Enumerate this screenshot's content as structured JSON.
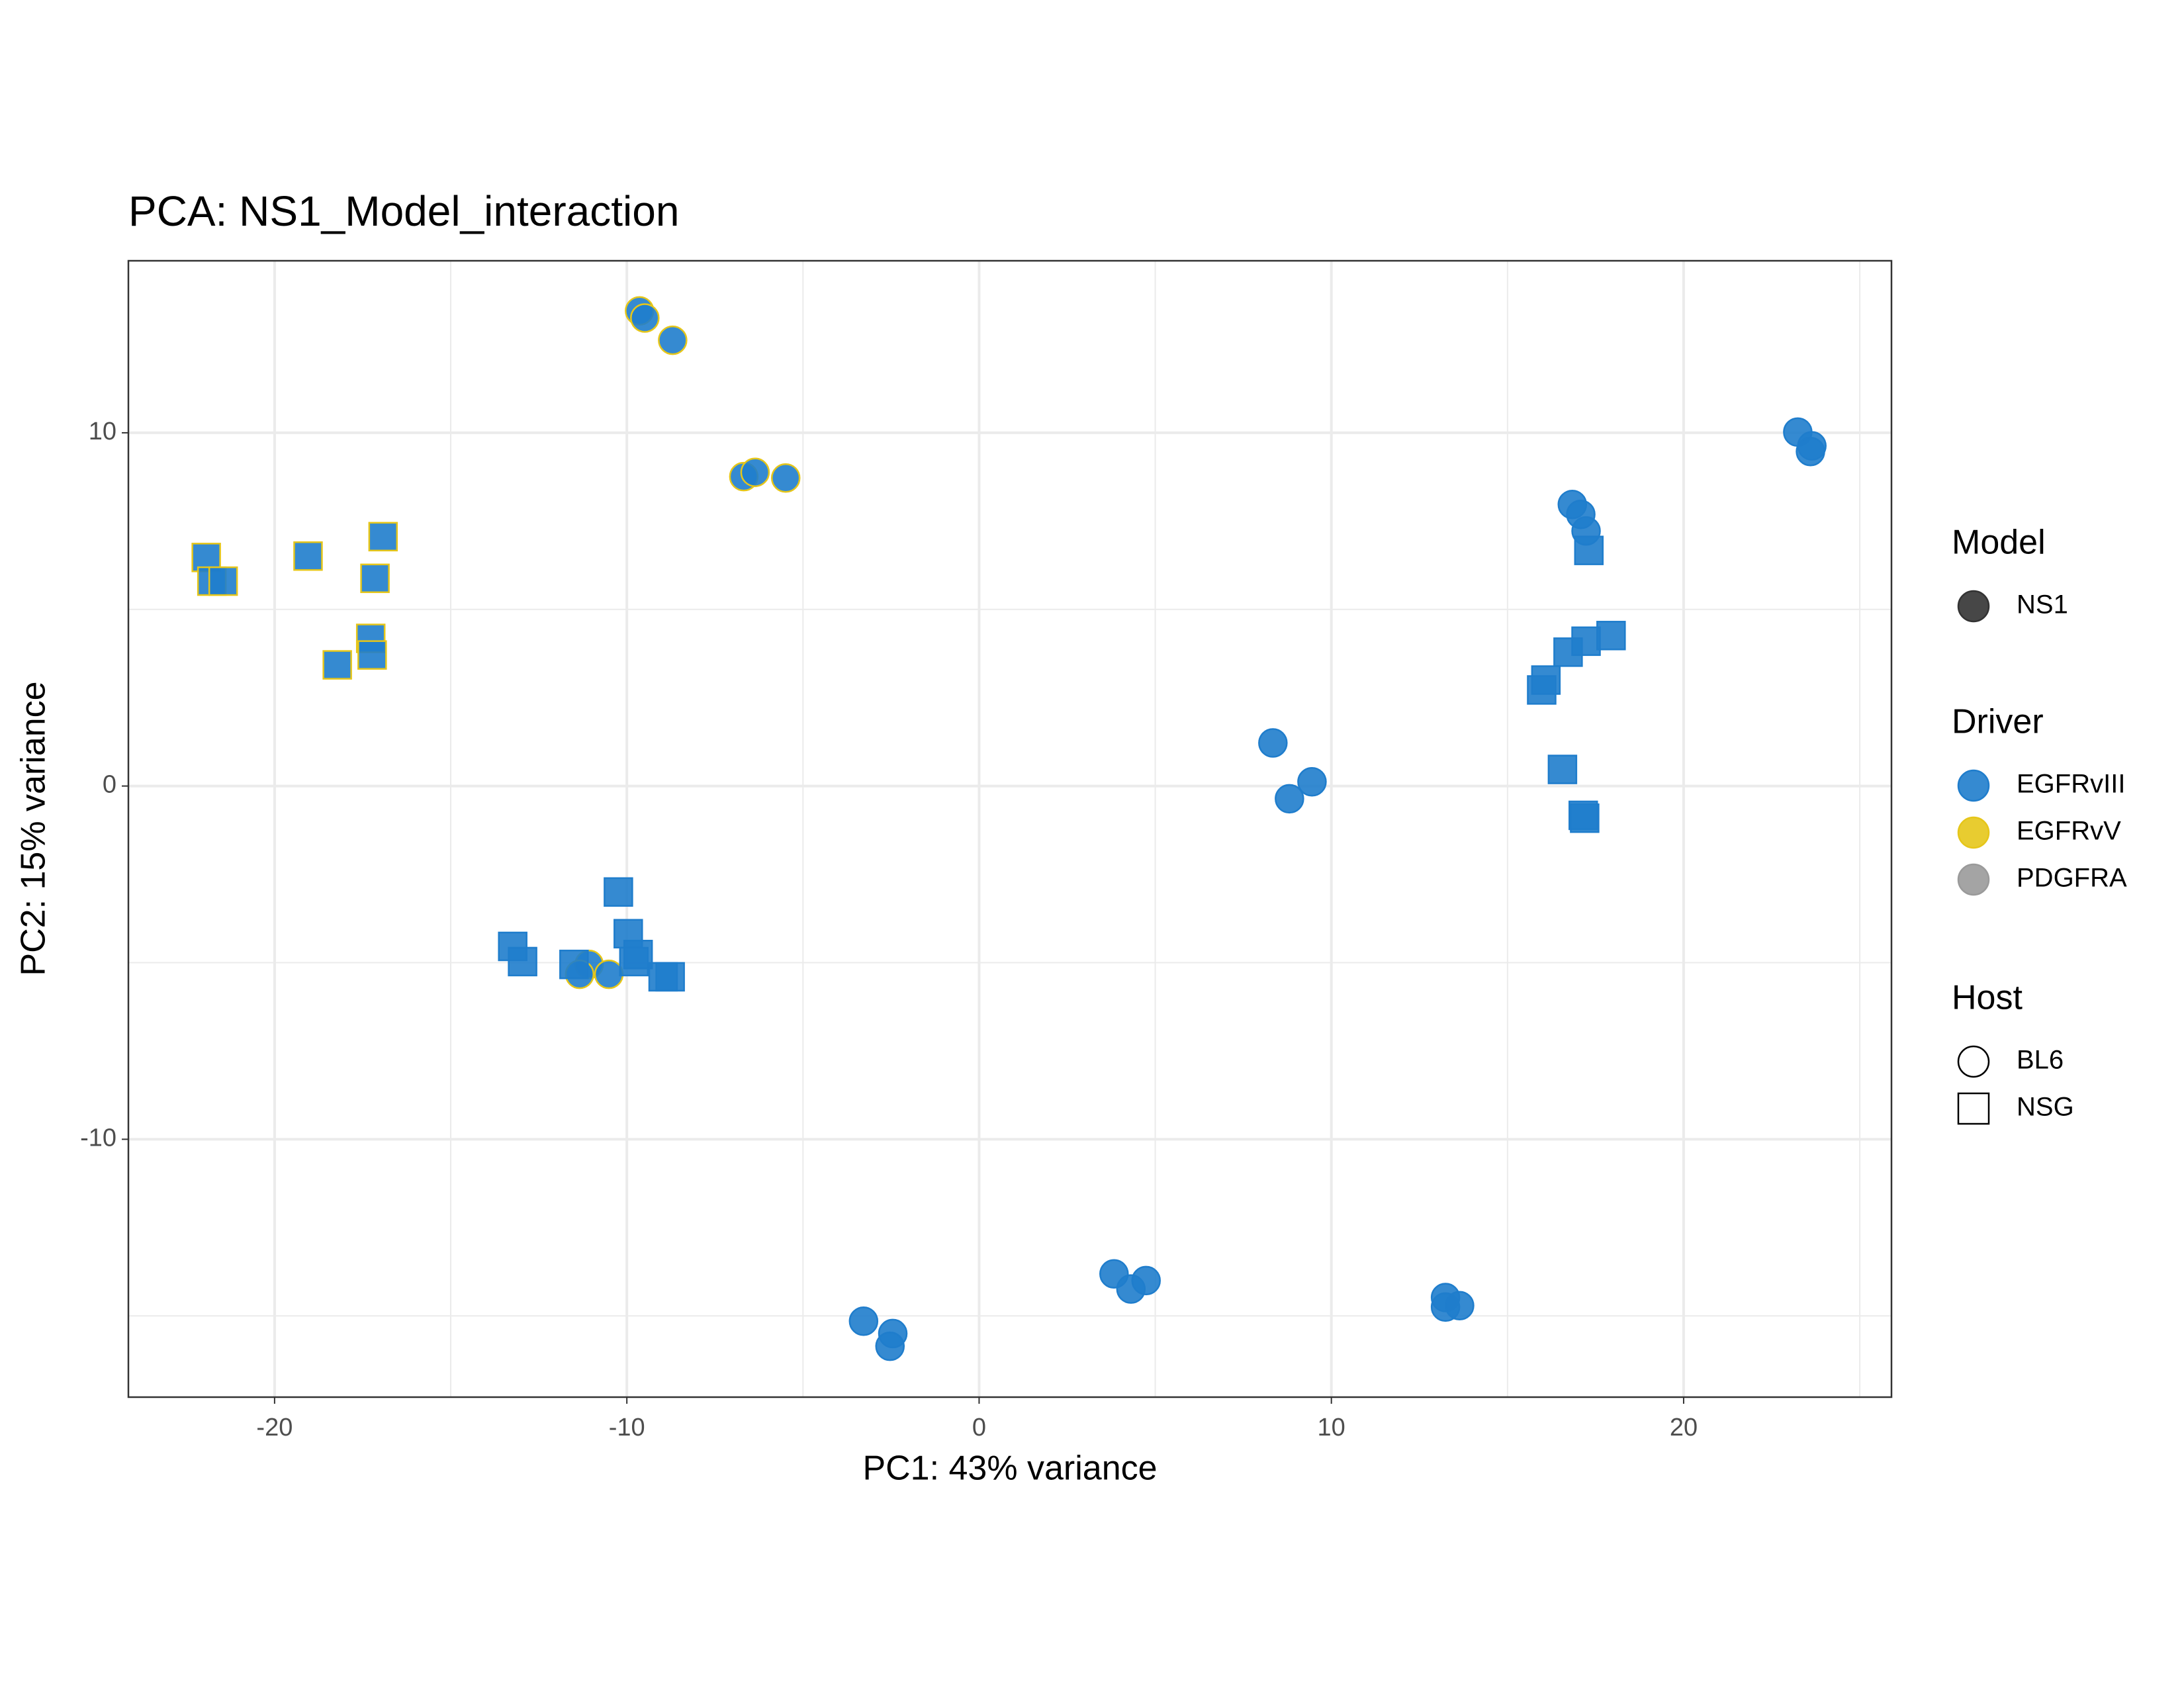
{
  "chart_data": {
    "type": "scatter",
    "title": "PCA: NS1_Model_interaction",
    "x_label": "PC1: 43% variance",
    "y_label": "PC2: 15% variance",
    "xlim": [
      -24.15,
      25.9
    ],
    "ylim": [
      -17.3,
      14.87
    ],
    "xticks": [
      -20,
      -10,
      0,
      10,
      20
    ],
    "yticks": [
      -10,
      0,
      10
    ],
    "x_minor_grid": [
      -15,
      -5,
      5,
      15,
      25
    ],
    "y_minor_grid": [
      -15,
      -5,
      5
    ],
    "grid": true,
    "legends": [
      {
        "title": "Model",
        "entries": [
          {
            "label": "NS1",
            "shape": "circle",
            "fill": "#333333",
            "stroke": "#333333"
          }
        ]
      },
      {
        "title": "Driver",
        "entries": [
          {
            "label": "EGFRvIII",
            "shape": "circle",
            "fill": "#1f7dcc",
            "stroke": "#1f7dcc"
          },
          {
            "label": "EGFRvV",
            "shape": "circle",
            "fill": "#e6c619",
            "stroke": "#e6c619"
          },
          {
            "label": "PDGFRA",
            "shape": "circle",
            "fill": "#9a9a9a",
            "stroke": "#9a9a9a"
          }
        ]
      },
      {
        "title": "Host",
        "entries": [
          {
            "label": "BL6",
            "shape": "circle",
            "fill": "none",
            "stroke": "#000000"
          },
          {
            "label": "NSG",
            "shape": "square",
            "fill": "none",
            "stroke": "#000000"
          }
        ]
      }
    ],
    "point_fill": "#1f7dcc",
    "series": [
      {
        "driver": "EGFRvV",
        "host": "BL6",
        "x": [
          -9.64,
          -9.49,
          -8.7,
          -6.68,
          -6.36,
          -5.49,
          -11.07,
          -11.34,
          -10.51
        ],
        "y": [
          13.45,
          13.25,
          12.62,
          8.76,
          8.88,
          8.72,
          -5.05,
          -5.33,
          -5.33
        ]
      },
      {
        "driver": "EGFRvV",
        "host": "NSG",
        "x": [
          -21.94,
          -21.78,
          -21.46,
          -19.05,
          -16.92,
          -17.15,
          -17.27,
          -17.23,
          -18.22
        ],
        "y": [
          6.47,
          5.8,
          5.8,
          6.51,
          7.06,
          5.88,
          4.18,
          3.71,
          3.43
        ]
      },
      {
        "driver": "EGFRvIII",
        "host": "NSG",
        "x": [
          -10.24,
          -9.96,
          -13.24,
          -12.96,
          -11.5,
          -9.8,
          -9.68,
          -8.97,
          -8.77,
          15.97,
          16.09,
          16.72,
          17.23,
          17.94,
          16.56,
          17.15,
          17.19,
          17.31
        ],
        "y": [
          -3.0,
          -4.18,
          -4.54,
          -4.97,
          -5.05,
          -4.97,
          -4.77,
          -5.4,
          -5.4,
          2.72,
          3.0,
          3.79,
          4.1,
          4.26,
          0.47,
          -0.83,
          -0.91,
          6.67
        ]
      },
      {
        "driver": "EGFRvIII",
        "host": "BL6",
        "x": [
          16.84,
          17.08,
          17.23,
          23.24,
          23.64,
          23.6,
          8.34,
          8.81,
          9.45,
          -3.28,
          -2.45,
          -2.53,
          3.83,
          4.31,
          4.74,
          13.24,
          13.24,
          13.64
        ],
        "y": [
          7.97,
          7.69,
          7.22,
          10.02,
          9.63,
          9.47,
          1.22,
          -0.36,
          0.12,
          -15.15,
          -15.5,
          -15.86,
          -13.81,
          -14.24,
          -14.0,
          -14.48,
          -14.75,
          -14.71
        ]
      }
    ]
  }
}
